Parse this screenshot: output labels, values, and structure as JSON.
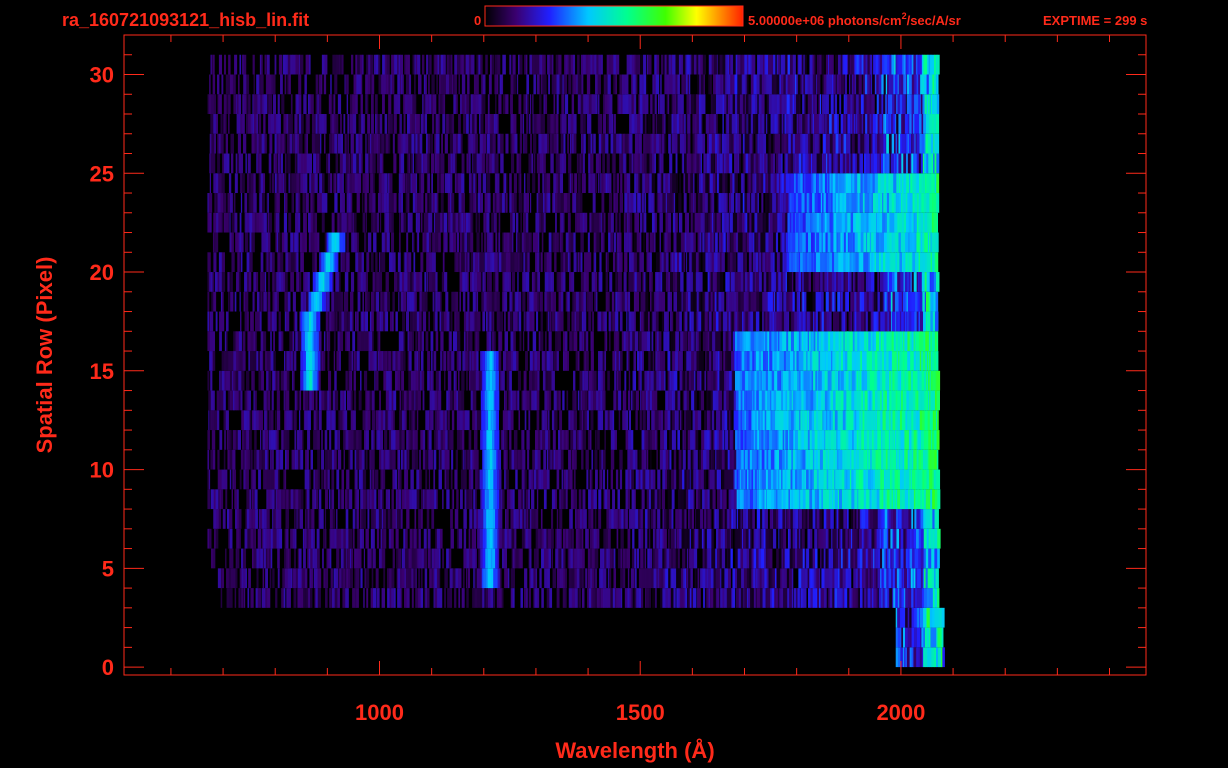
{
  "header": {
    "filename": "ra_160721093121_hisb_lin.fit",
    "colorbar_min": "0",
    "colorbar_max_label_prefix": "5.00000e+06 photons/cm",
    "colorbar_max_label_sup": "2",
    "colorbar_max_label_suffix": "/sec/A/sr",
    "exptime": "EXPTIME = 299 s"
  },
  "colors": {
    "axis": "#ff2a1a",
    "text": "#ff2a1a",
    "background": "#000000"
  },
  "chart_data": {
    "type": "heatmap",
    "xlabel": "Wavelength (Å)",
    "ylabel": "Spatial Row (Pixel)",
    "xlim": [
      510,
      2470
    ],
    "ylim": [
      -0.4,
      32
    ],
    "x_ticks": [
      1000,
      1500,
      2000
    ],
    "x_minor_step": 100,
    "y_ticks": [
      0,
      5,
      10,
      15,
      20,
      25,
      30
    ],
    "y_minor_step": 1,
    "colorbar": {
      "min": 0,
      "max": 5000000,
      "colormap": "rainbow"
    },
    "data_extent": {
      "x_min": 670,
      "x_max": 2080,
      "row_min": 0,
      "row_max": 30
    },
    "features": [
      {
        "name": "line",
        "x_center": 865,
        "rows": [
          14,
          21
        ],
        "level": 0.42
      },
      {
        "name": "line",
        "x_center": 1210,
        "rows": [
          4,
          15
        ],
        "level": 0.38
      },
      {
        "name": "continuum",
        "x_start": 1680,
        "x_end": 2070,
        "rows": [
          8,
          16
        ],
        "level": 0.62
      },
      {
        "name": "continuum",
        "x_start": 1780,
        "x_end": 2070,
        "rows": [
          20,
          24
        ],
        "level": 0.55
      }
    ]
  }
}
